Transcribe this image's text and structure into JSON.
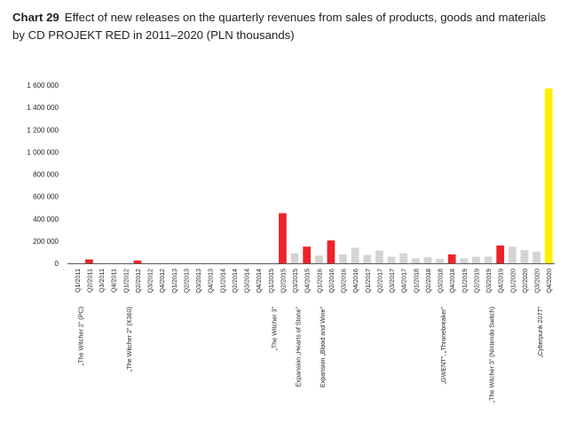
{
  "header": {
    "chart_number": "Chart 29",
    "title": "Effect of new releases on the quarterly revenues from sales of products, goods and materials by CD PROJEKT RED in 2011–2020 (PLN thousands)"
  },
  "colors": {
    "release": "#ee2229",
    "regular": "#d4d4d4",
    "cyberpunk": "#fff200",
    "axis": "#231f20"
  },
  "chart_data": {
    "type": "bar",
    "title": "Effect of new releases on the quarterly revenues from sales of products, goods and materials by CD PROJEKT RED in 2011–2020 (PLN thousands)",
    "xlabel": "",
    "ylabel": "",
    "ylim": [
      0,
      1600000
    ],
    "yticks": [
      0,
      200000,
      400000,
      600000,
      800000,
      1000000,
      1200000,
      1400000,
      1600000
    ],
    "ytick_labels": [
      "0",
      "200 000",
      "400 000",
      "600 000",
      "800 000",
      "1 000 000",
      "1 200 000",
      "1 400 000",
      "1 600 000"
    ],
    "grid": false,
    "categories": [
      "Q1/2011",
      "Q2/2011",
      "Q3/2011",
      "Q4/2011",
      "Q1/2012",
      "Q2/2012",
      "Q3/2012",
      "Q4/2012",
      "Q1/2013",
      "Q2/2013",
      "Q3/2013",
      "Q4/2013",
      "Q1/2014",
      "Q2/2014",
      "Q3/2014",
      "Q4/2014",
      "Q1/2015",
      "Q2/2015",
      "Q3/2015",
      "Q4/2015",
      "Q1/2016",
      "Q2/2016",
      "Q3/2016",
      "Q4/2016",
      "Q1/2017",
      "Q2/2017",
      "Q3/2017",
      "Q4/2017",
      "Q1/2018",
      "Q2/2018",
      "Q3/2018",
      "Q4/2018",
      "Q1/2019",
      "Q2/2019",
      "Q3/2019",
      "Q4/2019",
      "Q1/2020",
      "Q2/2020",
      "Q3/2020",
      "Q4/2020"
    ],
    "values": [
      0,
      35000,
      0,
      0,
      0,
      25000,
      0,
      0,
      0,
      0,
      0,
      0,
      0,
      0,
      0,
      0,
      0,
      450000,
      90000,
      150000,
      70000,
      205000,
      80000,
      140000,
      75000,
      115000,
      60000,
      90000,
      45000,
      55000,
      40000,
      80000,
      45000,
      60000,
      60000,
      160000,
      150000,
      120000,
      105000,
      1570000
    ],
    "highlight": [
      "none",
      "release",
      "none",
      "none",
      "none",
      "release",
      "none",
      "none",
      "none",
      "none",
      "none",
      "none",
      "none",
      "none",
      "none",
      "none",
      "none",
      "release",
      "regular",
      "release",
      "regular",
      "release",
      "regular",
      "regular",
      "regular",
      "regular",
      "regular",
      "regular",
      "regular",
      "regular",
      "regular",
      "release",
      "regular",
      "regular",
      "regular",
      "release",
      "regular",
      "regular",
      "regular",
      "cyberpunk"
    ],
    "release_labels": [
      {
        "quarter": "Q2/2011",
        "label": "„The Witcher 2” (PC)"
      },
      {
        "quarter": "Q2/2012",
        "label": "„The Witcher 2” (X360)"
      },
      {
        "quarter": "Q2/2015",
        "label": "„The Witcher 3”"
      },
      {
        "quarter": "Q4/2015",
        "label": "Expansion „Hearts of Stone”"
      },
      {
        "quarter": "Q2/2016",
        "label": "Expansion „Blood and Wine”"
      },
      {
        "quarter": "Q4/2018",
        "label": "„GWENT”, „Thronebreaker”"
      },
      {
        "quarter": "Q4/2019",
        "label": "„The Witcher 3” (Nintendo Switch)"
      },
      {
        "quarter": "Q4/2020",
        "label": "„Cyberpunk 2077”"
      }
    ]
  }
}
